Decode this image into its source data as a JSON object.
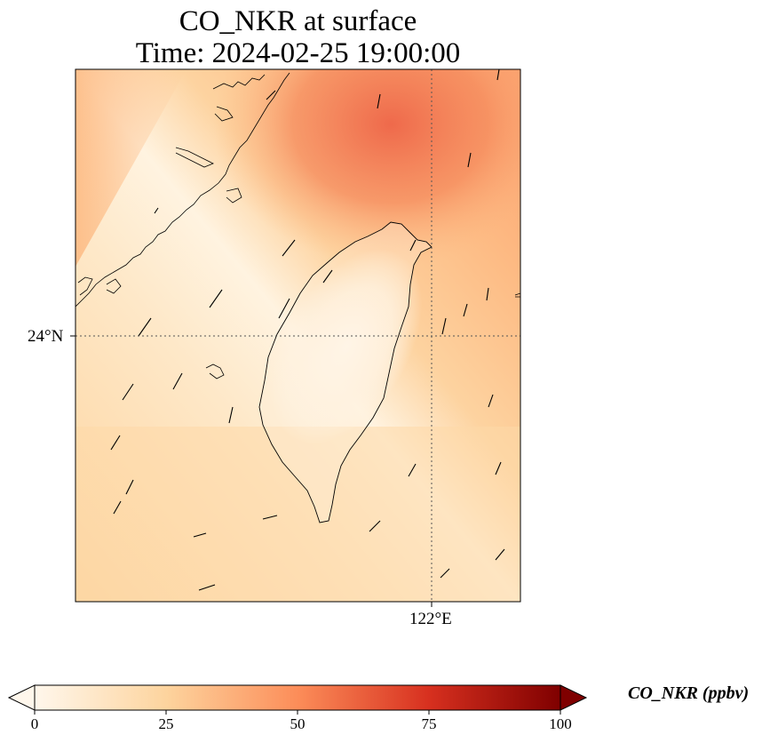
{
  "title": {
    "line1": "CO_NKR at surface",
    "line2": "Time: 2024-02-25 19:00:00"
  },
  "map": {
    "lat_tick_label": "24°N",
    "lon_tick_label": "122°E",
    "field_colormap": "OrRd-like",
    "gridlines": "dotted"
  },
  "colorbar": {
    "label": "CO_NKR (ppbv)",
    "ticks": [
      "0",
      "25",
      "50",
      "75",
      "100"
    ],
    "min": 0,
    "max": 100,
    "extend": "both",
    "colors": [
      "#fff7ec",
      "#fdd49e",
      "#fc8d59",
      "#d7301f",
      "#7f0000"
    ]
  }
}
